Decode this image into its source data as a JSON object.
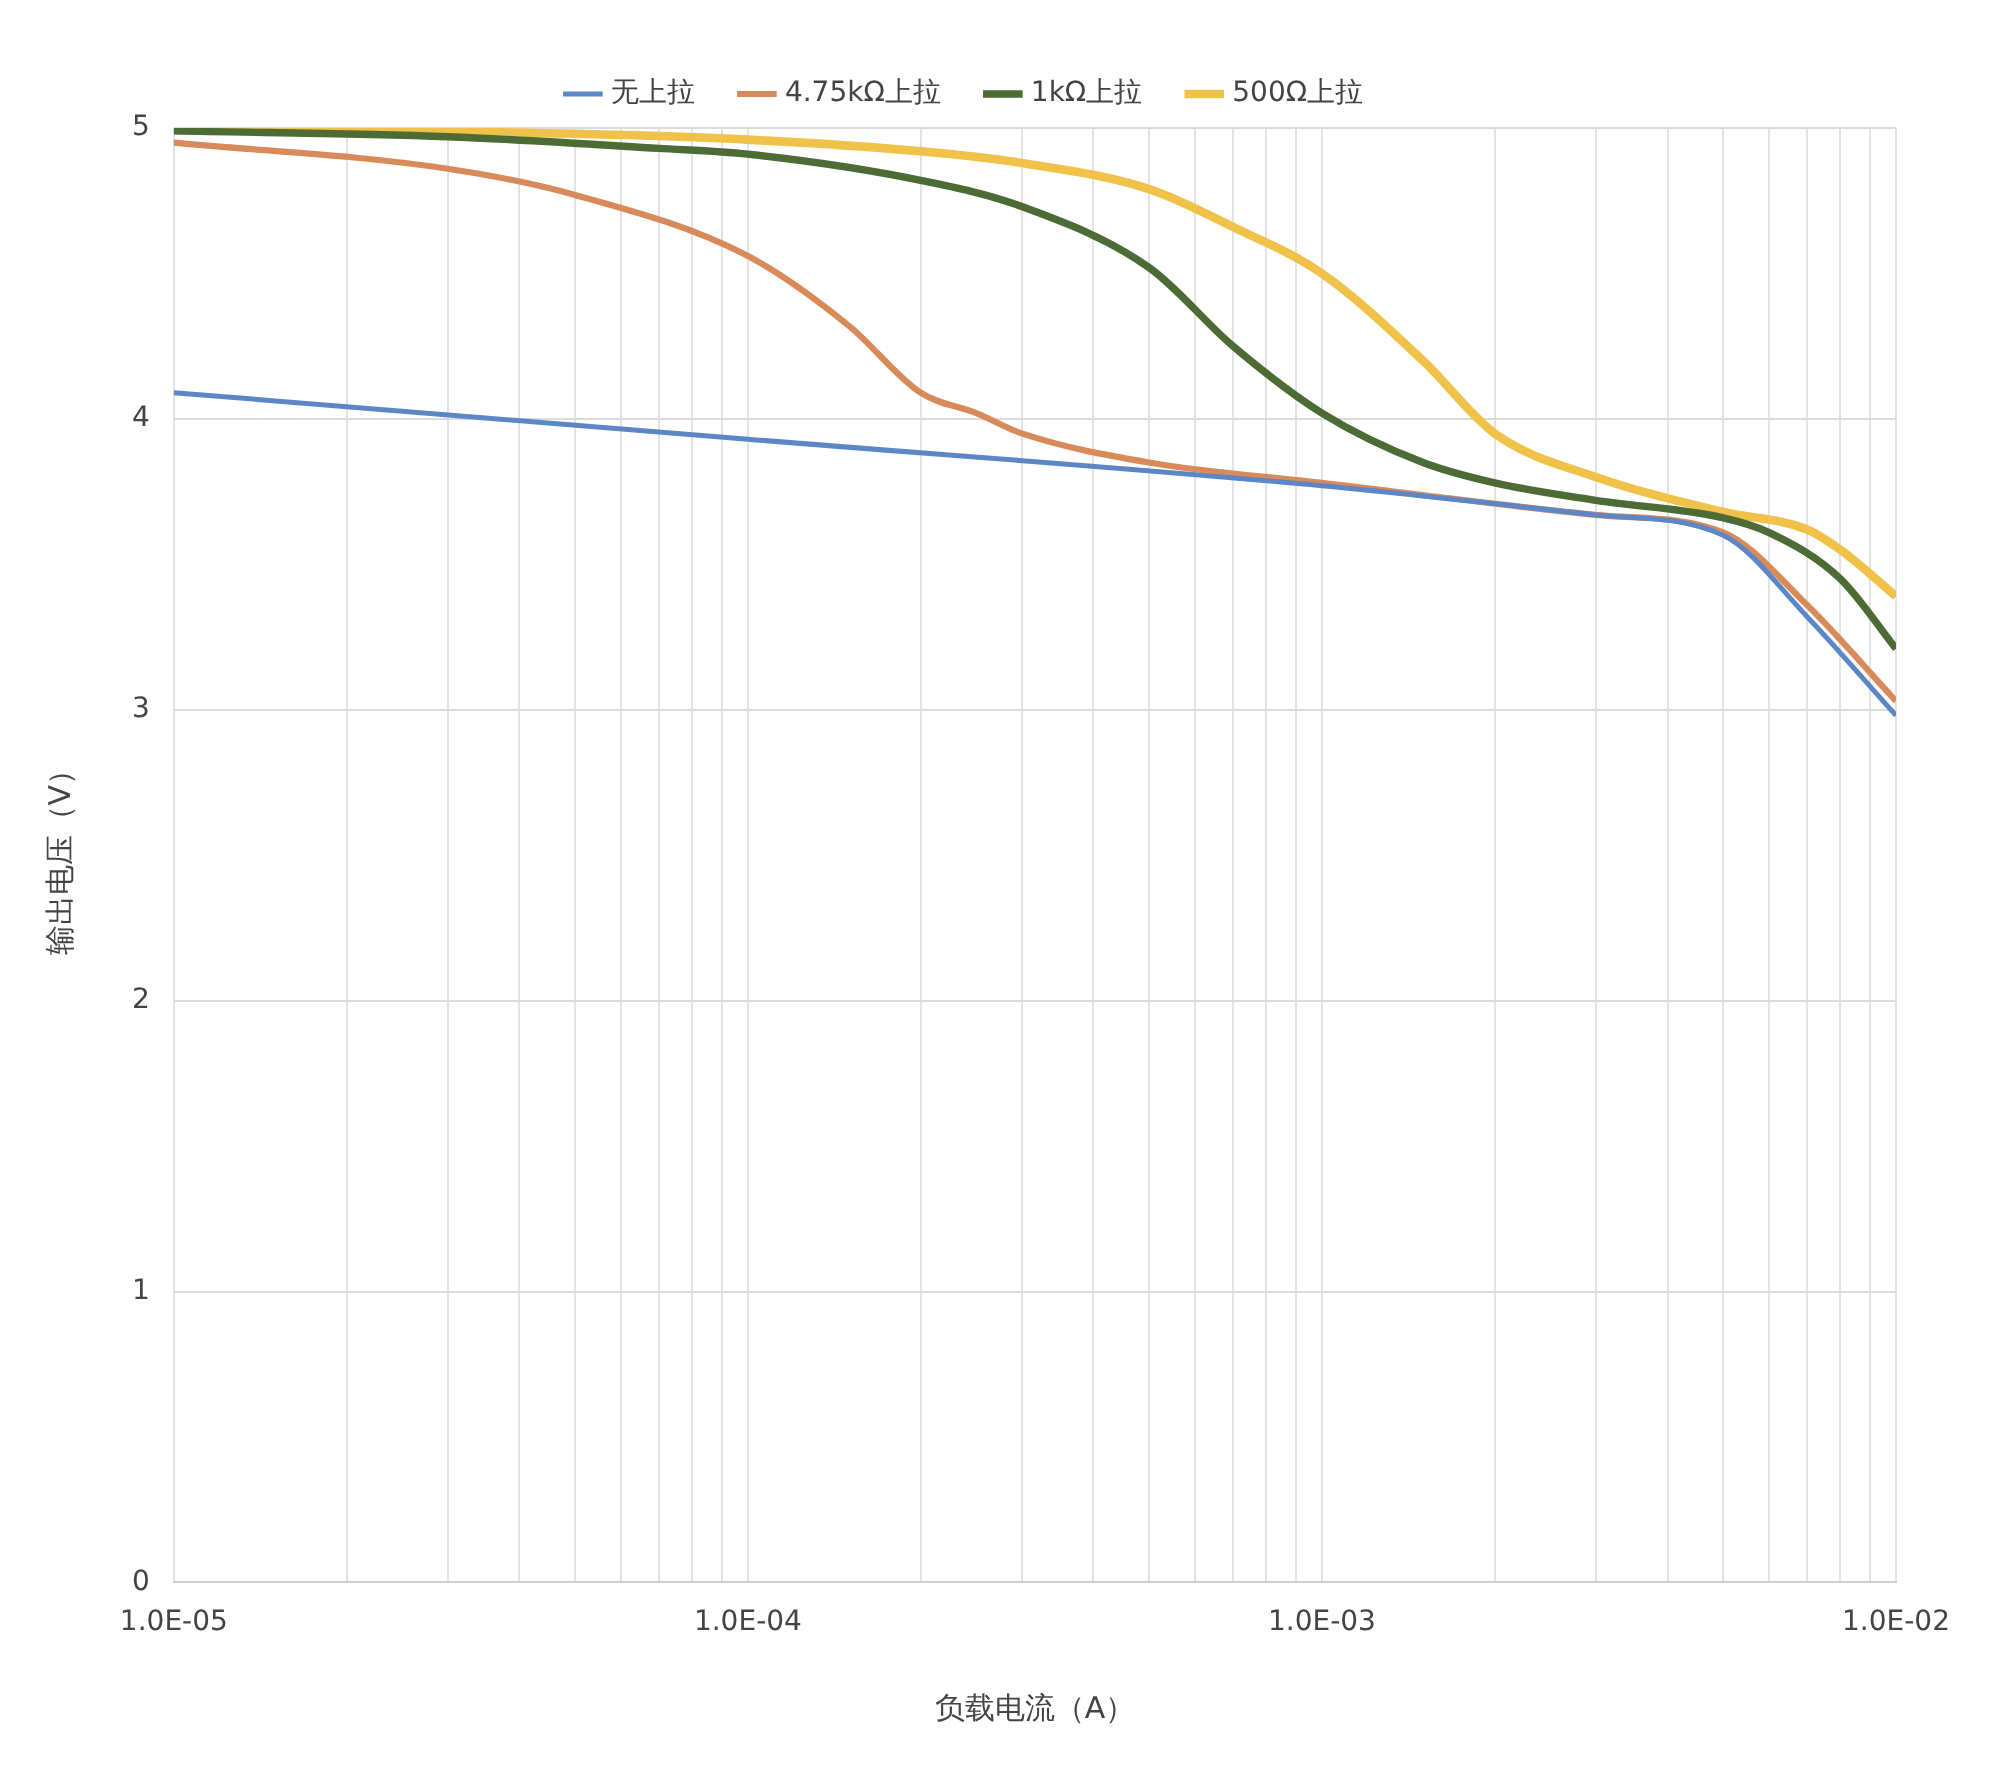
{
  "chart_data": {
    "type": "line",
    "xlabel": "负载电流（A）",
    "ylabel": "输出电压（V）",
    "log": "x",
    "grid": true,
    "legend": "top",
    "marker": "none",
    "line_style": "solid",
    "xlim": [
      1e-05,
      0.01
    ],
    "ylim": [
      0,
      5
    ],
    "xticks": [
      {
        "value": 1e-05,
        "label": "1.0E-05"
      },
      {
        "value": 2e-05,
        "label": null
      },
      {
        "value": 3e-05,
        "label": null
      },
      {
        "value": 4e-05,
        "label": null
      },
      {
        "value": 5e-05,
        "label": null
      },
      {
        "value": 6e-05,
        "label": null
      },
      {
        "value": 7e-05,
        "label": null
      },
      {
        "value": 8e-05,
        "label": null
      },
      {
        "value": 9e-05,
        "label": null
      },
      {
        "value": 0.0001,
        "label": "1.0E-04"
      },
      {
        "value": 0.0002,
        "label": null
      },
      {
        "value": 0.0003,
        "label": null
      },
      {
        "value": 0.0004,
        "label": null
      },
      {
        "value": 0.0005,
        "label": null
      },
      {
        "value": 0.0006,
        "label": null
      },
      {
        "value": 0.0007,
        "label": null
      },
      {
        "value": 0.0008,
        "label": null
      },
      {
        "value": 0.0009,
        "label": null
      },
      {
        "value": 0.001,
        "label": "1.0E-03"
      },
      {
        "value": 0.002,
        "label": null
      },
      {
        "value": 0.003,
        "label": null
      },
      {
        "value": 0.004,
        "label": null
      },
      {
        "value": 0.005,
        "label": null
      },
      {
        "value": 0.006,
        "label": null
      },
      {
        "value": 0.007,
        "label": null
      },
      {
        "value": 0.008,
        "label": null
      },
      {
        "value": 0.009,
        "label": null
      },
      {
        "value": 0.01,
        "label": "1.0E-02"
      }
    ],
    "yticks": [
      0,
      1,
      2,
      3,
      4,
      5
    ],
    "series": [
      {
        "name": "无上拉",
        "color": "#5b87c7",
        "x": [
          1e-05,
          0.0001,
          0.001,
          0.003,
          0.005,
          0.007,
          0.01
        ],
        "values": [
          4.09,
          3.93,
          3.77,
          3.67,
          3.6,
          3.32,
          2.98
        ]
      },
      {
        "name": "4.75kΩ上拉",
        "color": "#d98a5a",
        "x": [
          1e-05,
          3e-05,
          5e-05,
          0.0001,
          0.00015,
          0.0002,
          0.00025,
          0.0003,
          0.0005,
          0.001,
          0.003,
          0.005,
          0.007,
          0.01
        ],
        "values": [
          4.95,
          4.86,
          4.77,
          4.56,
          4.32,
          4.09,
          4.02,
          3.95,
          3.85,
          3.78,
          3.67,
          3.61,
          3.36,
          3.03
        ]
      },
      {
        "name": "1kΩ上拉",
        "color": "#4d6b35",
        "x": [
          1e-05,
          3e-05,
          7e-05,
          0.0001,
          0.0002,
          0.0003,
          0.0005,
          0.0007,
          0.001,
          0.0015,
          0.002,
          0.003,
          0.005,
          0.006,
          0.008,
          0.01
        ],
        "values": [
          4.99,
          4.97,
          4.93,
          4.91,
          4.82,
          4.73,
          4.52,
          4.25,
          4.02,
          3.85,
          3.78,
          3.72,
          3.66,
          3.61,
          3.45,
          3.21
        ]
      },
      {
        "name": "500Ω上拉",
        "color": "#f0c24a",
        "x": [
          1e-05,
          5e-05,
          0.0001,
          0.0002,
          0.0003,
          0.0005,
          0.0007,
          0.001,
          0.0015,
          0.002,
          0.003,
          0.005,
          0.007,
          0.008,
          0.01
        ],
        "values": [
          5.0,
          4.98,
          4.96,
          4.92,
          4.88,
          4.79,
          4.66,
          4.5,
          4.2,
          3.95,
          3.8,
          3.68,
          3.62,
          3.55,
          3.39
        ]
      }
    ]
  }
}
